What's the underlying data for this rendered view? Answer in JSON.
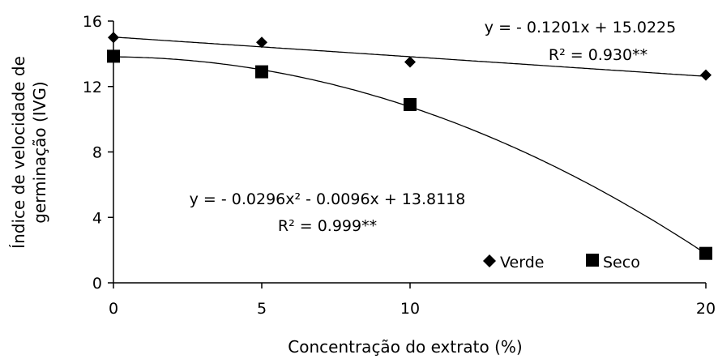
{
  "chart_data": {
    "type": "scatter",
    "categories": [
      "0",
      "5",
      "10",
      "20"
    ],
    "x": [
      0,
      5,
      10,
      20
    ],
    "xlabel": "Concentração do extrato (%)",
    "ylabel_lines": [
      "Índice de velocidade de",
      "germinação (IVG)"
    ],
    "ylim": [
      0,
      16
    ],
    "yticks": [
      0,
      4,
      8,
      12,
      16
    ],
    "grid": false,
    "legend_position": "bottom-right",
    "series": [
      {
        "name": "Verde",
        "marker": "diamond",
        "values": [
          15.0,
          14.7,
          13.5,
          12.7
        ],
        "fit": {
          "type": "linear",
          "a": -0.1201,
          "b": 15.0225
        },
        "equation": "y = - 0.1201x + 15.0225",
        "r2": "R² = 0.930**"
      },
      {
        "name": "Seco",
        "marker": "square",
        "values": [
          13.85,
          12.9,
          10.9,
          1.8
        ],
        "fit": {
          "type": "quadratic",
          "a": -0.0296,
          "b": -0.0096,
          "c": 13.8118
        },
        "equation": "y = - 0.0296x² - 0.0096x + 13.8118",
        "r2": "R² = 0.999**"
      }
    ]
  }
}
